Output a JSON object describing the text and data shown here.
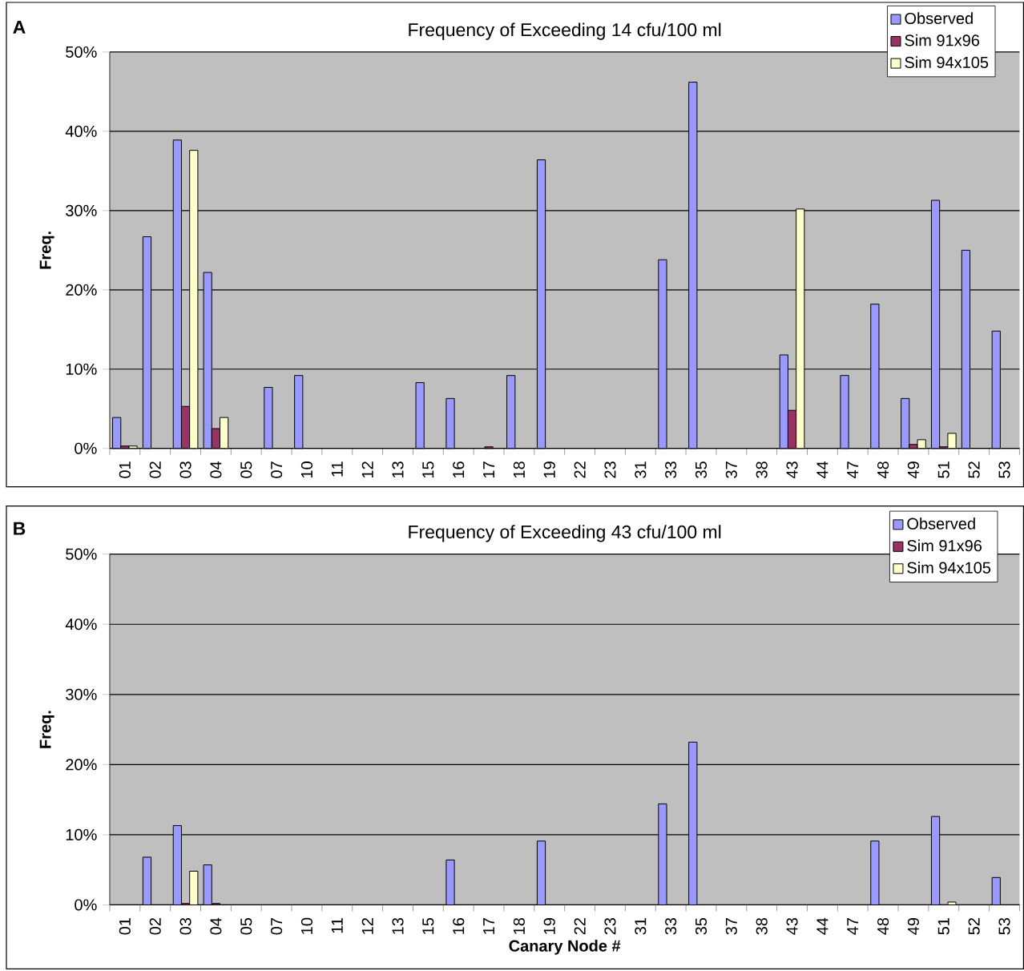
{
  "chart_data": [
    {
      "type": "bar",
      "title": "Frequency of Exceeding 14 cfu/100 ml",
      "ylabel": "Freq.",
      "annotations": [
        "A"
      ],
      "categories": [
        "01",
        "02",
        "03",
        "04",
        "05",
        "07",
        "10",
        "11",
        "12",
        "13",
        "15",
        "16",
        "17",
        "18",
        "19",
        "22",
        "23",
        "31",
        "33",
        "35",
        "37",
        "38",
        "43",
        "44",
        "47",
        "48",
        "49",
        "51",
        "52",
        "53"
      ],
      "series": [
        {
          "name": "Observed",
          "color": "#9999ff",
          "values": [
            3.9,
            26.7,
            38.9,
            22.2,
            0,
            7.7,
            9.2,
            0,
            0,
            0,
            8.3,
            6.3,
            0,
            9.2,
            36.4,
            0,
            0,
            0,
            23.8,
            46.2,
            0,
            0,
            11.8,
            0,
            9.2,
            18.2,
            6.3,
            31.3,
            25.0,
            14.8
          ]
        },
        {
          "name": "Sim 91x96",
          "color": "#993366",
          "values": [
            0.3,
            0,
            5.3,
            2.5,
            0,
            0,
            0,
            0,
            0,
            0,
            0,
            0,
            0.2,
            0,
            0,
            0,
            0,
            0,
            0,
            0,
            0,
            0,
            4.8,
            0,
            0,
            0,
            0.5,
            0.2,
            0,
            0
          ]
        },
        {
          "name": "Sim 94x105",
          "color": "#ffffcc",
          "values": [
            0.3,
            0,
            37.6,
            3.9,
            0,
            0,
            0,
            0,
            0,
            0,
            0,
            0,
            0,
            0,
            0,
            0,
            0,
            0,
            0,
            0,
            0,
            0,
            30.2,
            0,
            0,
            0,
            1.1,
            1.9,
            0,
            0
          ]
        }
      ],
      "ylim": [
        0,
        50
      ],
      "yticks": [
        {
          "value": 0,
          "label": "0%"
        },
        {
          "value": 10,
          "label": "10%"
        },
        {
          "value": 20,
          "label": "20%"
        },
        {
          "value": 30,
          "label": "30%"
        },
        {
          "value": 40,
          "label": "40%"
        },
        {
          "value": 50,
          "label": "50%"
        }
      ],
      "grid": "y",
      "legend": "top right"
    },
    {
      "type": "bar",
      "title": "Frequency of Exceeding 43 cfu/100 ml",
      "xlabel": "Canary Node #",
      "ylabel": "Freq.",
      "annotations": [
        "B"
      ],
      "categories": [
        "01",
        "02",
        "03",
        "04",
        "05",
        "07",
        "10",
        "11",
        "12",
        "13",
        "15",
        "16",
        "17",
        "18",
        "19",
        "22",
        "23",
        "31",
        "33",
        "35",
        "37",
        "38",
        "43",
        "44",
        "47",
        "48",
        "49",
        "51",
        "52",
        "53"
      ],
      "series": [
        {
          "name": "Observed",
          "color": "#9999ff",
          "values": [
            0,
            6.8,
            11.3,
            5.7,
            0,
            0,
            0,
            0,
            0,
            0,
            0,
            6.4,
            0,
            0,
            9.1,
            0,
            0,
            0,
            14.4,
            23.2,
            0,
            0,
            0,
            0,
            0,
            9.1,
            0,
            12.6,
            0,
            3.9
          ]
        },
        {
          "name": "Sim 91x96",
          "color": "#993366",
          "values": [
            0,
            0,
            0.2,
            0.2,
            0,
            0,
            0,
            0,
            0,
            0,
            0,
            0,
            0,
            0,
            0,
            0,
            0,
            0,
            0,
            0,
            0,
            0,
            0,
            0,
            0,
            0,
            0,
            0,
            0,
            0
          ]
        },
        {
          "name": "Sim 94x105",
          "color": "#ffffcc",
          "values": [
            0,
            0,
            4.8,
            0,
            0,
            0,
            0,
            0,
            0,
            0,
            0,
            0,
            0,
            0,
            0,
            0,
            0,
            0,
            0,
            0,
            0,
            0,
            0,
            0,
            0,
            0,
            0,
            0.4,
            0,
            0
          ]
        }
      ],
      "ylim": [
        0,
        50
      ],
      "yticks": [
        {
          "value": 0,
          "label": "0%"
        },
        {
          "value": 10,
          "label": "10%"
        },
        {
          "value": 20,
          "label": "20%"
        },
        {
          "value": 30,
          "label": "30%"
        },
        {
          "value": 40,
          "label": "40%"
        },
        {
          "value": 50,
          "label": "50%"
        }
      ],
      "grid": "y",
      "legend": "top right"
    }
  ]
}
